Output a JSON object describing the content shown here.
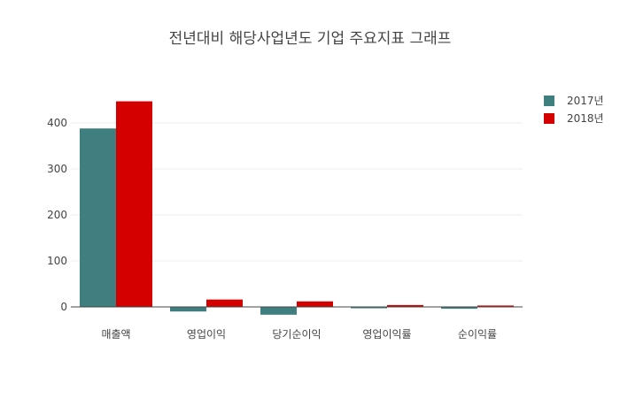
{
  "chart_data": {
    "type": "bar",
    "title": "전년대비 해당사업년도 기업 주요지표 그래프",
    "xlabel": "",
    "ylabel": "",
    "categories": [
      "매출액",
      "영업이익",
      "당기순이익",
      "영업이익률",
      "순이익률"
    ],
    "series": [
      {
        "name": "2017년",
        "color": "#3f7f7f",
        "values": [
          388,
          -10,
          -17,
          -3,
          -4
        ]
      },
      {
        "name": "2018년",
        "color": "#d40000",
        "values": [
          447,
          16,
          12,
          4,
          3
        ]
      }
    ],
    "ylim": [
      -20,
      460
    ],
    "yticks": [
      0,
      100,
      200,
      300,
      400
    ],
    "grid": true,
    "legend_position": "top-right"
  }
}
